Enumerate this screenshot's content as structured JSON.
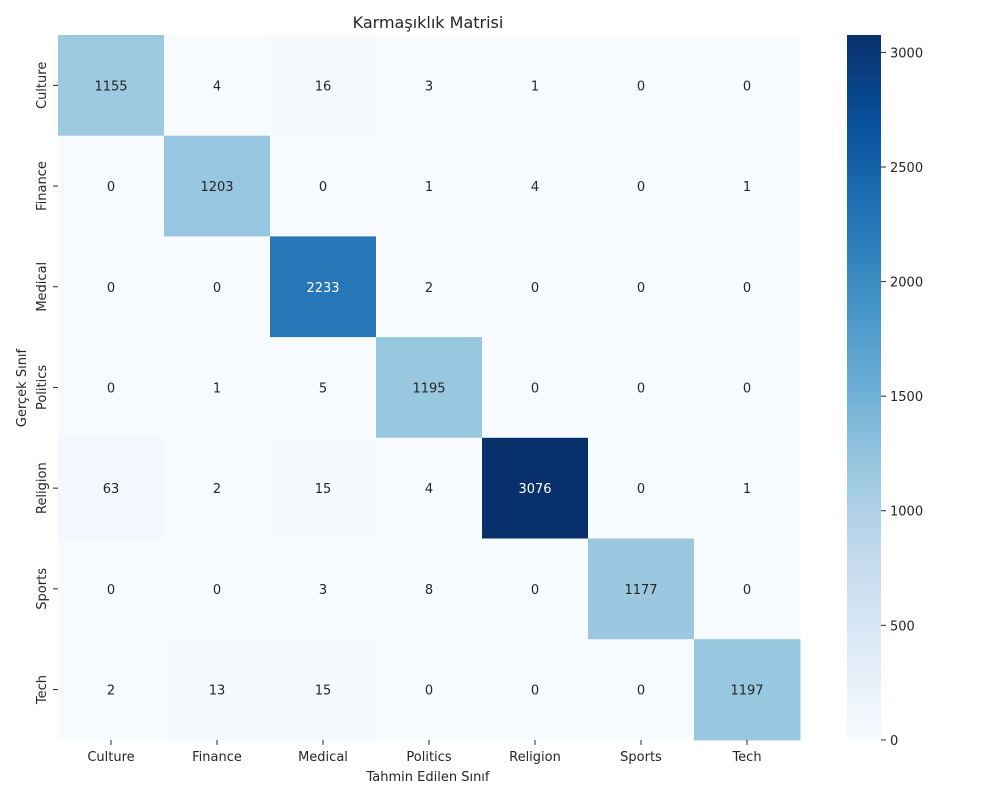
{
  "chart_data": {
    "type": "heatmap",
    "title": "Karmaşıklık Matrisi",
    "xlabel": "Tahmin Edilen Sınıf",
    "ylabel": "Gerçek Sınıf",
    "x_categories": [
      "Culture",
      "Finance",
      "Medical",
      "Politics",
      "Religion",
      "Sports",
      "Tech"
    ],
    "y_categories": [
      "Culture",
      "Finance",
      "Medical",
      "Politics",
      "Religion",
      "Sports",
      "Tech"
    ],
    "values": [
      [
        1155,
        4,
        16,
        3,
        1,
        0,
        0
      ],
      [
        0,
        1203,
        0,
        1,
        4,
        0,
        1
      ],
      [
        0,
        0,
        2233,
        2,
        0,
        0,
        0
      ],
      [
        0,
        1,
        5,
        1195,
        0,
        0,
        0
      ],
      [
        63,
        2,
        15,
        4,
        3076,
        0,
        1
      ],
      [
        0,
        0,
        3,
        8,
        0,
        1177,
        0
      ],
      [
        2,
        13,
        15,
        0,
        0,
        0,
        1197
      ]
    ],
    "colorbar": {
      "colormap": "Blues",
      "vmin": 0,
      "vmax": 3076,
      "ticks": [
        "0",
        "500",
        "1000",
        "1500",
        "2000",
        "2500",
        "3000"
      ]
    }
  }
}
